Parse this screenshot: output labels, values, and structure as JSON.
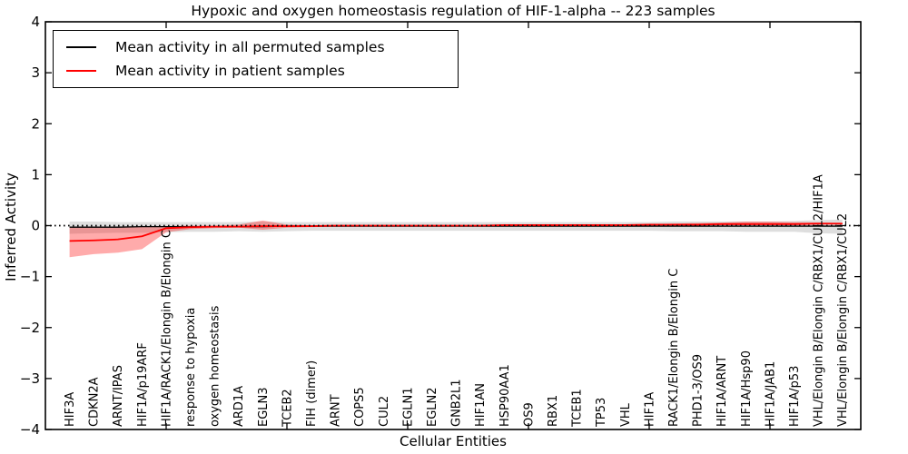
{
  "figure": {
    "title": "Hypoxic and oxygen homeostasis regulation of HIF-1-alpha -- 223 samples",
    "xlabel": "Cellular Entities",
    "ylabel": "Inferred Activity"
  },
  "legend": {
    "entries": [
      {
        "label": "Mean activity in all permuted samples",
        "color": "#000000"
      },
      {
        "label": "Mean activity in patient samples",
        "color": "#ff0000"
      }
    ]
  },
  "chart_data": {
    "type": "line",
    "title": "Hypoxic and oxygen homeostasis regulation of HIF-1-alpha -- 223 samples",
    "xlabel": "Cellular Entities",
    "ylabel": "Inferred Activity",
    "ylim": [
      -4,
      4
    ],
    "grid": false,
    "legend_position": "upper left",
    "categories": [
      "HIF3A",
      "CDKN2A",
      "ARNT/IPAS",
      "HIF1A/p19ARF",
      "HIF1A/RACK1/Elongin B/Elongin C",
      "response to hypoxia",
      "oxygen homeostasis",
      "ARD1A",
      "EGLN3",
      "TCEB2",
      "FIH (dimer)",
      "ARNT",
      "COPS5",
      "CUL2",
      "EGLN1",
      "EGLN2",
      "GNB2L1",
      "HIF1AN",
      "HSP90AA1",
      "OS9",
      "RBX1",
      "TCEB1",
      "TP53",
      "VHL",
      "HIF1A",
      "RACK1/Elongin B/Elongin C",
      "PHD1-3/OS9",
      "HIF1A/ARNT",
      "HIF1A/Hsp90",
      "HIF1A/JAB1",
      "HIF1A/p53",
      "VHL/Elongin B/Elongin C/RBX1/CUL2/HIF1A",
      "VHL/Elongin B/Elongin C/RBX1/CUL2"
    ],
    "yticks": [
      {
        "value": 4,
        "label": "4"
      },
      {
        "value": 3,
        "label": "3"
      },
      {
        "value": 2,
        "label": "2"
      },
      {
        "value": 1,
        "label": "1"
      },
      {
        "value": 0,
        "label": "0"
      },
      {
        "value": -1,
        "label": "−1"
      },
      {
        "value": -2,
        "label": "−2"
      },
      {
        "value": -3,
        "label": "−3"
      },
      {
        "value": -4,
        "label": "−4"
      }
    ],
    "x_tick_positions": [
      5,
      10,
      15,
      20,
      25,
      30
    ],
    "series": [
      {
        "id": "permuted-mean",
        "name": "Mean activity in all permuted samples",
        "color": "#000000",
        "width": 1.3,
        "values": [
          -0.03,
          -0.03,
          -0.03,
          -0.02,
          -0.02,
          -0.02,
          -0.02,
          -0.02,
          -0.02,
          -0.01,
          -0.01,
          -0.01,
          -0.01,
          -0.01,
          -0.01,
          -0.01,
          -0.01,
          -0.01,
          -0.01,
          -0.01,
          -0.01,
          -0.01,
          -0.01,
          -0.01,
          -0.01,
          -0.01,
          -0.01,
          -0.01,
          -0.01,
          -0.01,
          -0.01,
          -0.01,
          -0.01
        ]
      },
      {
        "id": "patient-mean",
        "name": "Mean activity in patient samples",
        "color": "#ff0000",
        "width": 1.8,
        "values": [
          -0.3,
          -0.29,
          -0.27,
          -0.21,
          -0.05,
          -0.03,
          -0.02,
          -0.02,
          -0.01,
          -0.01,
          -0.01,
          0.0,
          0.0,
          0.0,
          0.0,
          0.0,
          0.0,
          0.0,
          0.01,
          0.01,
          0.01,
          0.01,
          0.01,
          0.01,
          0.02,
          0.02,
          0.02,
          0.03,
          0.03,
          0.03,
          0.03,
          0.04,
          0.04
        ]
      }
    ],
    "bands": [
      {
        "id": "permuted-range",
        "color": "rgba(0,0,0,0.13)",
        "high": [
          0.08,
          0.08,
          0.07,
          0.07,
          0.07,
          0.07,
          0.07,
          0.07,
          0.08,
          0.07,
          0.07,
          0.07,
          0.07,
          0.07,
          0.07,
          0.07,
          0.07,
          0.07,
          0.07,
          0.07,
          0.07,
          0.07,
          0.07,
          0.07,
          0.07,
          0.08,
          0.08,
          0.08,
          0.08,
          0.08,
          0.09,
          0.11,
          0.12
        ],
        "low": [
          -0.16,
          -0.15,
          -0.14,
          -0.14,
          -0.13,
          -0.12,
          -0.12,
          -0.11,
          -0.12,
          -0.11,
          -0.1,
          -0.1,
          -0.1,
          -0.1,
          -0.1,
          -0.1,
          -0.1,
          -0.1,
          -0.1,
          -0.1,
          -0.1,
          -0.1,
          -0.1,
          -0.1,
          -0.1,
          -0.11,
          -0.11,
          -0.11,
          -0.12,
          -0.12,
          -0.12,
          -0.15,
          -0.16
        ]
      },
      {
        "id": "patient-range",
        "color": "rgba(255,0,0,0.33)",
        "high": [
          -0.04,
          -0.03,
          -0.03,
          -0.02,
          -0.01,
          0.0,
          0.0,
          0.02,
          0.1,
          0.02,
          0.01,
          0.01,
          0.01,
          0.01,
          0.01,
          0.01,
          0.01,
          0.01,
          0.02,
          0.02,
          0.02,
          0.02,
          0.02,
          0.02,
          0.03,
          0.04,
          0.05,
          0.06,
          0.08,
          0.08,
          0.07,
          0.06,
          0.05
        ],
        "low": [
          -0.62,
          -0.56,
          -0.53,
          -0.46,
          -0.13,
          -0.07,
          -0.05,
          -0.04,
          -0.08,
          -0.04,
          -0.03,
          -0.02,
          -0.02,
          -0.02,
          -0.02,
          -0.02,
          -0.02,
          -0.02,
          -0.01,
          -0.01,
          -0.01,
          -0.01,
          -0.01,
          -0.01,
          0.0,
          0.0,
          0.0,
          0.01,
          0.01,
          0.01,
          0.01,
          0.02,
          0.02
        ]
      }
    ],
    "zero_line": {
      "value": 0,
      "color": "#000000",
      "style": "dotted"
    }
  }
}
